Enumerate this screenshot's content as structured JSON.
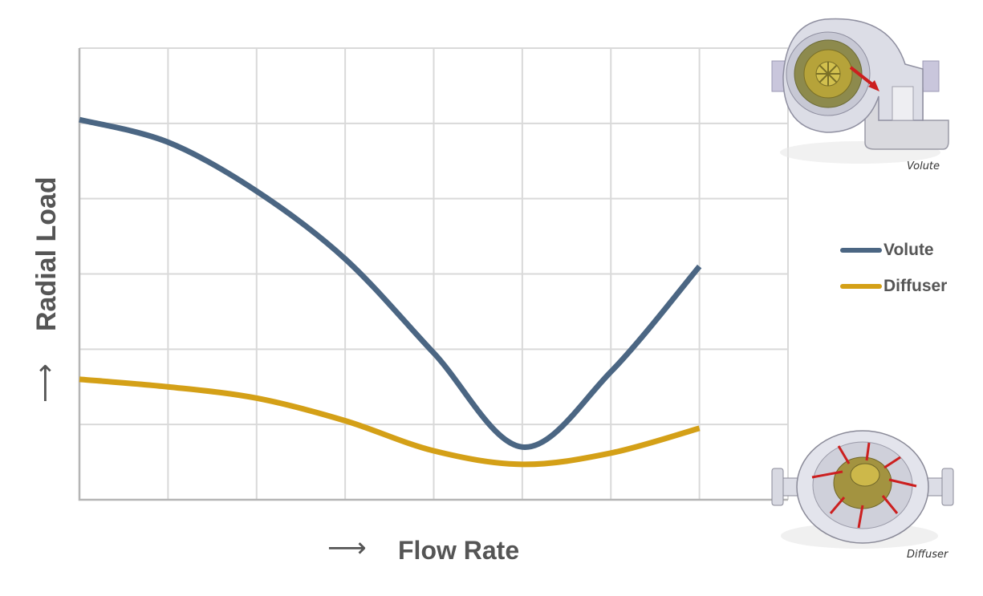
{
  "chart_data": {
    "type": "line",
    "xlabel": "Flow Rate",
    "ylabel": "Radial Load",
    "x_arrow": "⟶",
    "y_arrow": "⟶",
    "grid": true,
    "xlim": [
      0,
      8
    ],
    "ylim": [
      0,
      6
    ],
    "series": [
      {
        "name": "Volute",
        "color": "#4b6683",
        "x": [
          0,
          1,
          2,
          3,
          4,
          5,
          6,
          7
        ],
        "y": [
          5.05,
          4.75,
          4.1,
          3.2,
          1.95,
          0.7,
          1.7,
          3.1
        ]
      },
      {
        "name": "Diffuser",
        "color": "#d4a017",
        "x": [
          0,
          1,
          2,
          3,
          4,
          5,
          6,
          7
        ],
        "y": [
          1.6,
          1.5,
          1.35,
          1.05,
          0.65,
          0.47,
          0.62,
          0.95
        ]
      }
    ],
    "legend_position": "right"
  },
  "images": {
    "volute_caption": "Volute",
    "diffuser_caption": "Diffuser"
  }
}
